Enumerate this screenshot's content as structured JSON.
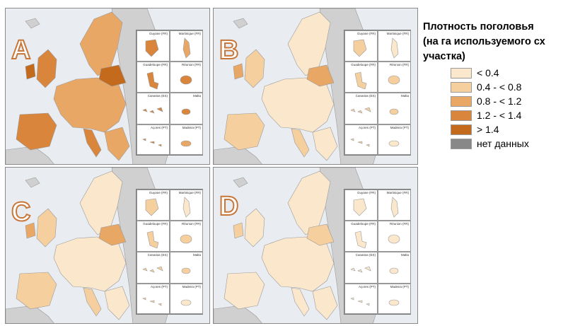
{
  "legend": {
    "title": "Плотность поголовья\n(на га используемого сх\nучастка)",
    "items": [
      {
        "label": "< 0.4",
        "color": "#fbe7cc"
      },
      {
        "label": "0.4 - < 0.8",
        "color": "#f5cf9e"
      },
      {
        "label": "0.8 - < 1.2",
        "color": "#e9a766"
      },
      {
        "label": "1.2 - < 1.4",
        "color": "#d9853c"
      },
      {
        "label": "> 1.4",
        "color": "#c46a1c"
      },
      {
        "label": "нет данных",
        "color": "#888888"
      }
    ]
  },
  "colors": {
    "sea": "#e9edf2",
    "non_eu_land": "#d0d0d0",
    "border": "#9a9a9a",
    "letter_outline": "#c8773a"
  },
  "insets": [
    {
      "label": "Guyane (FR)"
    },
    {
      "label": "Martinique (FR)"
    },
    {
      "label": "Guadeloupe (FR)"
    },
    {
      "label": "Réunion (FR)"
    },
    {
      "label": "Canarias (ES)"
    },
    {
      "label": "Malta"
    },
    {
      "label": "Açores (PT)"
    },
    {
      "label": "Madeira (PT)"
    }
  ],
  "panels": [
    {
      "letter": "A",
      "density_level": 3
    },
    {
      "letter": "B",
      "density_level": 1
    },
    {
      "letter": "C",
      "density_level": 1
    },
    {
      "letter": "D",
      "density_level": 0
    }
  ]
}
